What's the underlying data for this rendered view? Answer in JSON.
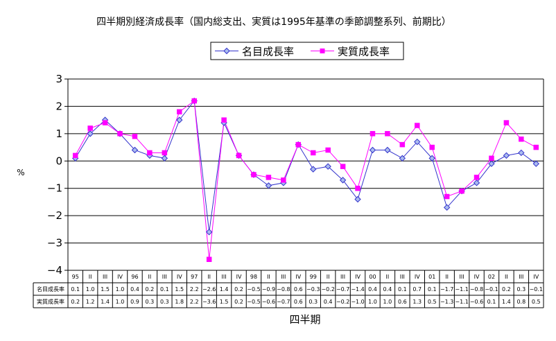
{
  "chart_data": {
    "type": "line",
    "title": "四半期別経済成長率（国内総支出、実質は1995年基準の季節調整系列、前期比）",
    "ylabel": "%",
    "xlabel": "四半期",
    "ylim": [
      -4,
      3
    ],
    "yticks": [
      "3",
      "2",
      "1",
      "0",
      "−1",
      "−2",
      "−3",
      "−4"
    ],
    "grid": true,
    "legend_position": "top-right",
    "categories": [
      "95",
      "II",
      "III",
      "IV",
      "96",
      "II",
      "III",
      "IV",
      "97",
      "II",
      "III",
      "IV",
      "98",
      "II",
      "III",
      "IV",
      "99",
      "II",
      "III",
      "IV",
      "00",
      "II",
      "III",
      "IV",
      "01",
      "II",
      "III",
      "IV",
      "02",
      "II",
      "III",
      "IV"
    ],
    "series": [
      {
        "name": "名目成長率",
        "color": "#3333cc",
        "marker": "diamond",
        "values": [
          0.1,
          1.0,
          1.5,
          1.0,
          0.4,
          0.2,
          0.1,
          1.5,
          2.2,
          -2.6,
          1.4,
          0.2,
          -0.5,
          -0.9,
          -0.8,
          0.6,
          -0.3,
          -0.2,
          -0.7,
          -1.4,
          0.4,
          0.4,
          0.1,
          0.7,
          0.1,
          -1.7,
          -1.1,
          -0.8,
          -0.1,
          0.2,
          0.3,
          -0.1
        ],
        "labels": [
          "0.1",
          "1.0",
          "1.5",
          "1.0",
          "0.4",
          "0.2",
          "0.1",
          "1.5",
          "2.2",
          "−2.6",
          "1.4",
          "0.2",
          "−0.5",
          "−0.9",
          "−0.8",
          "0.6",
          "−0.3",
          "−0.2",
          "−0.7",
          "−1.4",
          "0.4",
          "0.4",
          "0.1",
          "0.7",
          "0.1",
          "−1.7",
          "−1.1",
          "−0.8",
          "−0.1",
          "0.2",
          "0.3",
          "−0.1"
        ]
      },
      {
        "name": "実質成長率",
        "color": "#ff00ff",
        "marker": "square",
        "values": [
          0.2,
          1.2,
          1.4,
          1.0,
          0.9,
          0.3,
          0.3,
          1.8,
          2.2,
          -3.6,
          1.5,
          0.2,
          -0.5,
          -0.6,
          -0.7,
          0.6,
          0.3,
          0.4,
          -0.2,
          -1.0,
          1.0,
          1.0,
          0.6,
          1.3,
          0.5,
          -1.3,
          -1.1,
          -0.6,
          0.1,
          1.4,
          0.8,
          0.5
        ],
        "labels": [
          "0.2",
          "1.2",
          "1.4",
          "1.0",
          "0.9",
          "0.3",
          "0.3",
          "1.8",
          "2.2",
          "−3.6",
          "1.5",
          "0.2",
          "−0.5",
          "−0.6",
          "−0.7",
          "0.6",
          "0.3",
          "0.4",
          "−0.2",
          "−1.0",
          "1.0",
          "1.0",
          "0.6",
          "1.3",
          "0.5",
          "−1.3",
          "−1.1",
          "−0.6",
          "0.1",
          "1.4",
          "0.8",
          "0.5"
        ]
      }
    ]
  }
}
